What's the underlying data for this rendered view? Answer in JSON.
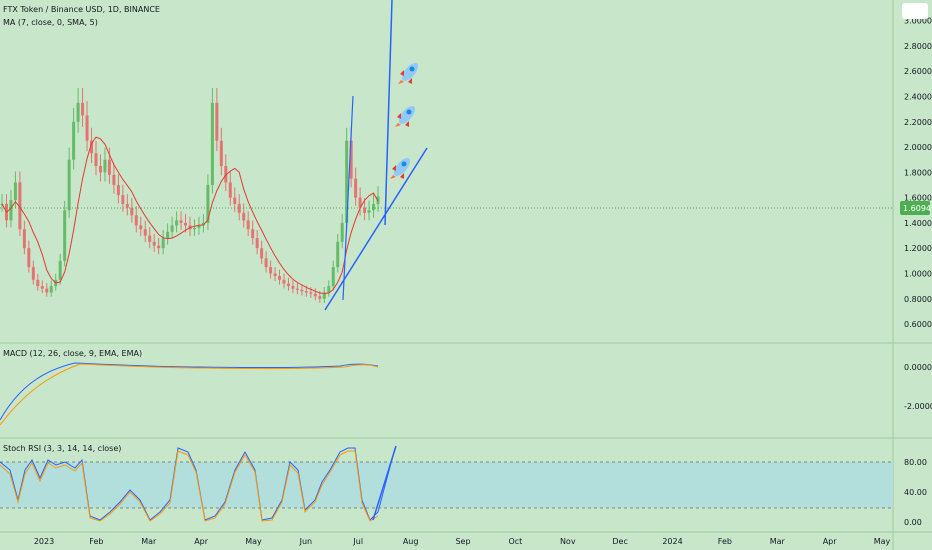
{
  "chart_data": [
    {
      "type": "line",
      "title": "FTX Token / Binance USD, 1D, BINANCE",
      "indicator": "MA (7, close, 0, SMA, 5)",
      "price_axis_ticks": [
        "3.0000",
        "2.8000",
        "2.6000",
        "2.4000",
        "2.2000",
        "2.0000",
        "1.8000",
        "1.6000",
        "1.4000",
        "1.2000",
        "1.0000",
        "0.8000",
        "0.6000"
      ],
      "last_price": "1.6094",
      "time_axis_labels": [
        "2023",
        "Feb",
        "Mar",
        "Apr",
        "May",
        "Jun",
        "Jul",
        "Aug",
        "Sep",
        "Oct",
        "Nov",
        "Dec",
        "2024",
        "Feb",
        "Mar",
        "Apr",
        "May"
      ],
      "y_range": [
        0.45,
        3.1
      ],
      "candles_close": [
        1.55,
        1.42,
        1.58,
        1.72,
        1.35,
        1.2,
        1.05,
        0.95,
        0.9,
        0.88,
        0.85,
        0.9,
        0.95,
        1.1,
        1.5,
        1.9,
        2.2,
        2.35,
        2.25,
        2.05,
        1.95,
        1.85,
        1.8,
        1.9,
        1.78,
        1.7,
        1.62,
        1.55,
        1.52,
        1.46,
        1.38,
        1.35,
        1.3,
        1.25,
        1.22,
        1.2,
        1.28,
        1.33,
        1.38,
        1.42,
        1.4,
        1.38,
        1.35,
        1.36,
        1.38,
        1.4,
        1.7,
        2.35,
        2.05,
        1.85,
        1.72,
        1.6,
        1.55,
        1.48,
        1.42,
        1.35,
        1.28,
        1.2,
        1.12,
        1.05,
        1.0,
        0.98,
        0.95,
        0.92,
        0.9,
        0.88,
        0.87,
        0.86,
        0.85,
        0.84,
        0.82,
        0.8,
        0.85,
        0.9,
        1.05,
        1.25,
        1.4,
        2.05,
        1.75,
        1.6,
        1.52,
        1.48,
        1.5,
        1.55,
        1.6094
      ],
      "ma": "MA (7, close, 0, SMA, 5)"
    },
    {
      "type": "line",
      "title": "MACD (12, 26, close, 9, EMA, EMA)",
      "axis_ticks": [
        "0.0000",
        "-2.0000"
      ],
      "y_range": [
        -3,
        0.6
      ]
    },
    {
      "type": "line",
      "title": "Stoch RSI (3, 3, 14, 14, close)",
      "axis_ticks": [
        "80.00",
        "40.00",
        "0.00"
      ],
      "bands": [
        80,
        20
      ],
      "y_range": [
        -5,
        110
      ]
    }
  ],
  "colors": {
    "background": "#c8e6c9",
    "candle_up": "#66bb6a",
    "candle_down": "#e57373",
    "ma": "#e53935",
    "trendline": "#2962ff",
    "last_price_badge": "#4caf50",
    "stoch_band": "#b2dfdb"
  },
  "annotations": [
    "rocket-icon",
    "rocket-icon",
    "rocket-icon"
  ]
}
